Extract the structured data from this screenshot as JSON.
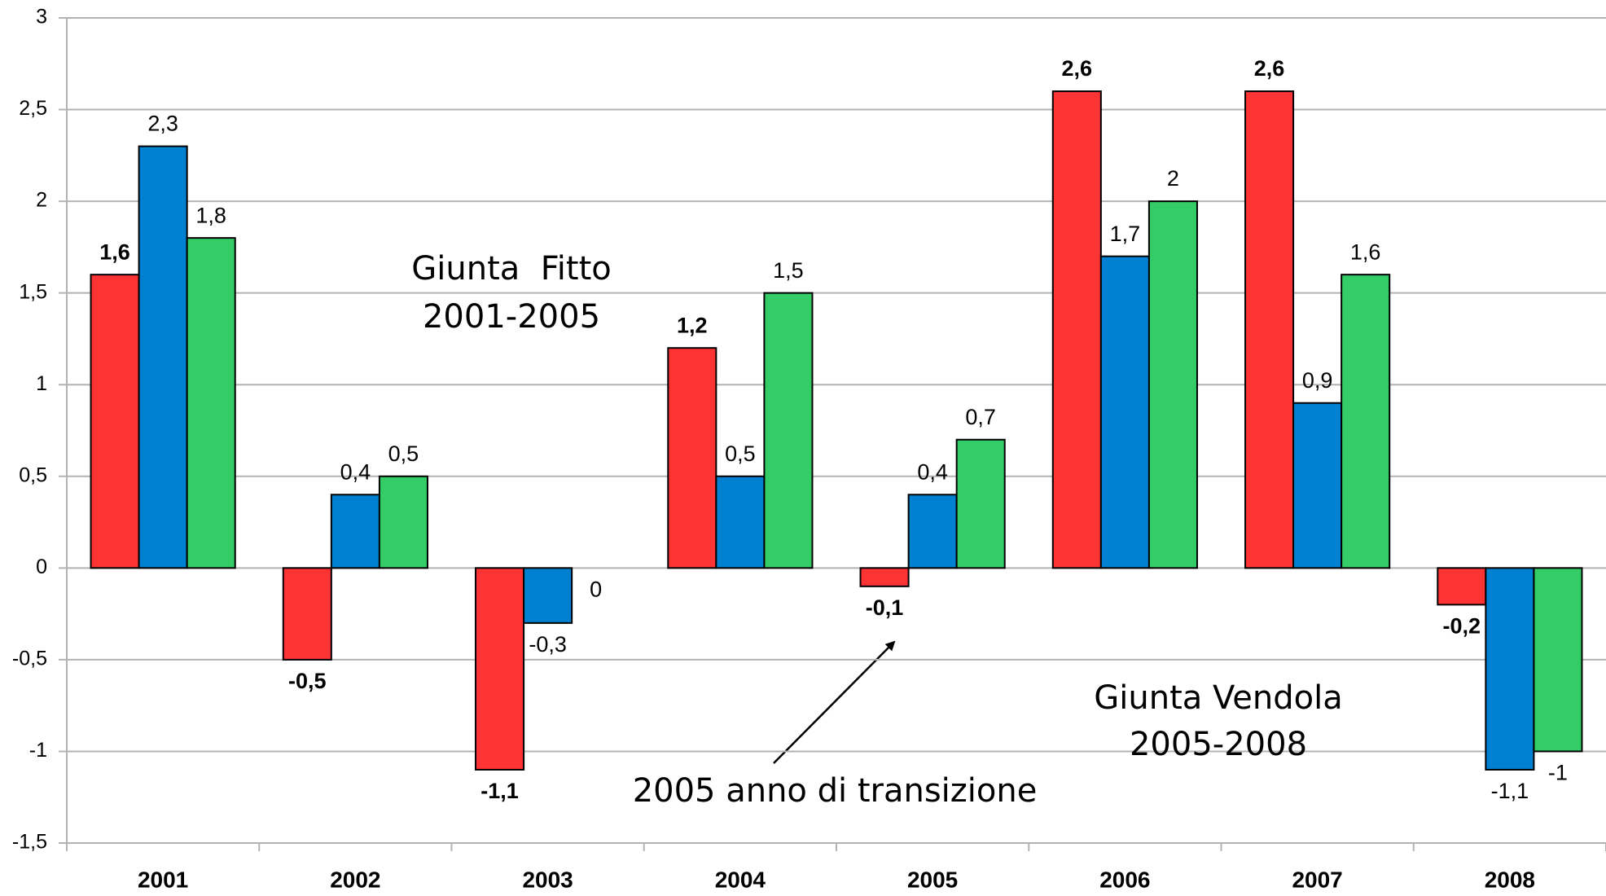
{
  "chart_data": {
    "type": "bar",
    "categories": [
      "2001",
      "2002",
      "2003",
      "2004",
      "2005",
      "2006",
      "2007",
      "2008"
    ],
    "series": [
      {
        "color": "#fe3333",
        "values": [
          1.6,
          -0.5,
          -1.1,
          1.2,
          -0.1,
          2.6,
          2.6,
          -0.2
        ],
        "value_labels": [
          "1,6",
          "-0,5",
          "-1,1",
          "1,2",
          "-0,1",
          "2,6",
          "2,6",
          "-0,2"
        ],
        "bold_labels": true
      },
      {
        "color": "#0080d0",
        "values": [
          2.3,
          0.4,
          -0.3,
          0.5,
          0.4,
          1.7,
          0.9,
          -1.1
        ],
        "value_labels": [
          "2,3",
          "0,4",
          "-0,3",
          "0,5",
          "0,4",
          "1,7",
          "0,9",
          "-1,1"
        ]
      },
      {
        "color": "#33cc66",
        "values": [
          1.8,
          0.5,
          0,
          1.5,
          0.7,
          2,
          1.6,
          -1
        ],
        "value_labels": [
          "1,8",
          "0,5",
          "0",
          "1,5",
          "0,7",
          "2",
          "1,6",
          "-1"
        ]
      }
    ],
    "ylim": [
      -1.5,
      3
    ],
    "yticks": [
      {
        "value": -1.5,
        "label": "-1,5"
      },
      -1,
      {
        "value": -0.5,
        "label": "-0,5"
      },
      0,
      {
        "value": 0.5,
        "label": "0,5"
      },
      1,
      {
        "value": 1.5,
        "label": "1,5"
      },
      2,
      {
        "value": 2.5,
        "label": "2,5"
      },
      3
    ],
    "grid": true,
    "annotations": [
      "Giunta  Fitto",
      "2001-2005",
      "Giunta Vendola",
      "2005-2008",
      "2005 anno di transizione"
    ]
  }
}
